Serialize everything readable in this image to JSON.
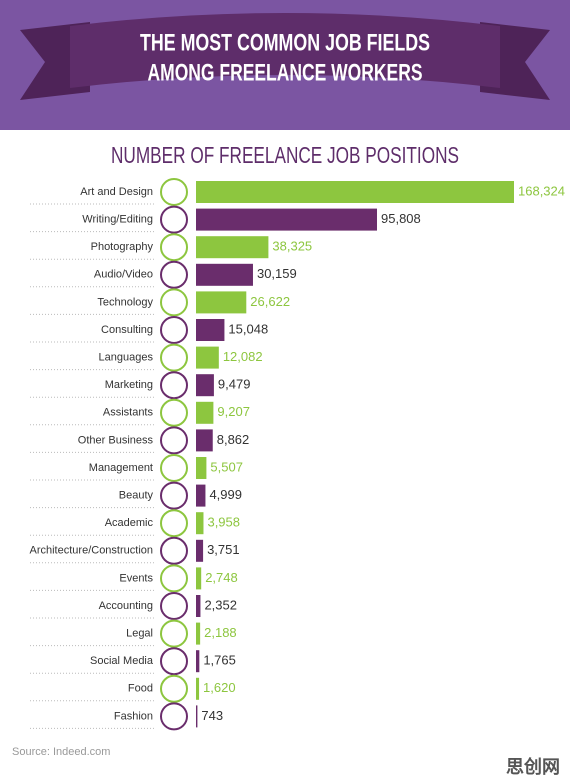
{
  "chart_data": {
    "type": "bar",
    "orientation": "horizontal",
    "title": [
      "THE MOST COMMON JOB FIELDS",
      "AMONG FREELANCE WORKERS"
    ],
    "subtitle": "NUMBER OF FREELANCE JOB POSITIONS",
    "categories": [
      "Art and Design",
      "Writing/Editing",
      "Photography",
      "Audio/Video",
      "Technology",
      "Consulting",
      "Languages",
      "Marketing",
      "Assistants",
      "Other Business",
      "Management",
      "Beauty",
      "Academic",
      "Architecture/Construction",
      "Events",
      "Accounting",
      "Legal",
      "Social Media",
      "Food",
      "Fashion"
    ],
    "values": [
      168324,
      95808,
      38325,
      30159,
      26622,
      15048,
      12082,
      9479,
      9207,
      8862,
      5507,
      4999,
      3958,
      3751,
      2748,
      2352,
      2188,
      1765,
      1620,
      743
    ],
    "value_labels": [
      "168,324",
      "95,808",
      "38,325",
      "30,159",
      "26,622",
      "15,048",
      "12,082",
      "9,479",
      "9,207",
      "8,862",
      "5,507",
      "4,999",
      "3,958",
      "3,751",
      "2,748",
      "2,352",
      "2,188",
      "1,765",
      "1,620",
      "743"
    ],
    "colors": [
      "#8dc63f",
      "#6a2d6c"
    ],
    "source": "Source: Indeed.com",
    "watermark": "思创网"
  }
}
